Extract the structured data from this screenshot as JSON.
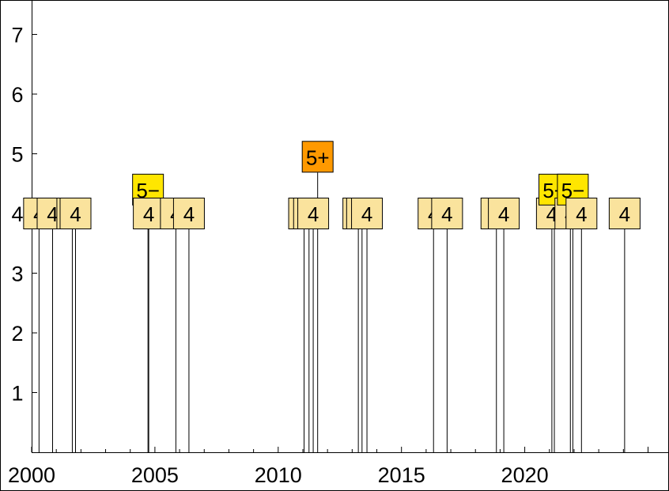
{
  "chart_data": {
    "type": "scatter",
    "title": "",
    "xlabel": "",
    "ylabel": "",
    "xlim": [
      2000,
      2025
    ],
    "ylim": [
      0,
      7.5
    ],
    "x_ticks": [
      "2000",
      "2005",
      "2010",
      "2015",
      "2020"
    ],
    "y_ticks": [
      "1",
      "2",
      "3",
      "4",
      "5",
      "6",
      "7"
    ],
    "grid": false,
    "colors": {
      "intensity_4": "#fae39d",
      "intensity_5_lower": "#ffe600",
      "intensity_5_upper": "#ff9900",
      "axis": "#000000",
      "stem": "#000000"
    },
    "points": [
      {
        "x": 2000.3,
        "y": 4,
        "label": "4"
      },
      {
        "x": 2000.85,
        "y": 4,
        "label": "4"
      },
      {
        "x": 2001.65,
        "y": 4,
        "label": "4"
      },
      {
        "x": 2001.78,
        "y": 4,
        "label": "4"
      },
      {
        "x": 2004.72,
        "y": 4.4,
        "label": "5−"
      },
      {
        "x": 2004.75,
        "y": 4,
        "label": "4"
      },
      {
        "x": 2005.85,
        "y": 4,
        "label": "4"
      },
      {
        "x": 2006.38,
        "y": 4,
        "label": "4"
      },
      {
        "x": 2011.05,
        "y": 4,
        "label": "4"
      },
      {
        "x": 2011.25,
        "y": 4,
        "label": "4"
      },
      {
        "x": 2011.42,
        "y": 4,
        "label": "4"
      },
      {
        "x": 2011.6,
        "y": 4.95,
        "label": "5+"
      },
      {
        "x": 2013.25,
        "y": 4,
        "label": "4"
      },
      {
        "x": 2013.4,
        "y": 4,
        "label": "4"
      },
      {
        "x": 2013.6,
        "y": 4,
        "label": "4"
      },
      {
        "x": 2016.3,
        "y": 4,
        "label": "4"
      },
      {
        "x": 2016.85,
        "y": 4,
        "label": "4"
      },
      {
        "x": 2018.85,
        "y": 4,
        "label": "4"
      },
      {
        "x": 2019.15,
        "y": 4,
        "label": "4"
      },
      {
        "x": 2021.1,
        "y": 4,
        "label": "4"
      },
      {
        "x": 2021.2,
        "y": 4.4,
        "label": "5−"
      },
      {
        "x": 2021.85,
        "y": 4,
        "label": "4"
      },
      {
        "x": 2021.95,
        "y": 4.4,
        "label": "5−"
      },
      {
        "x": 2022.3,
        "y": 4,
        "label": "4"
      },
      {
        "x": 2024.05,
        "y": 4,
        "label": "4"
      }
    ]
  }
}
